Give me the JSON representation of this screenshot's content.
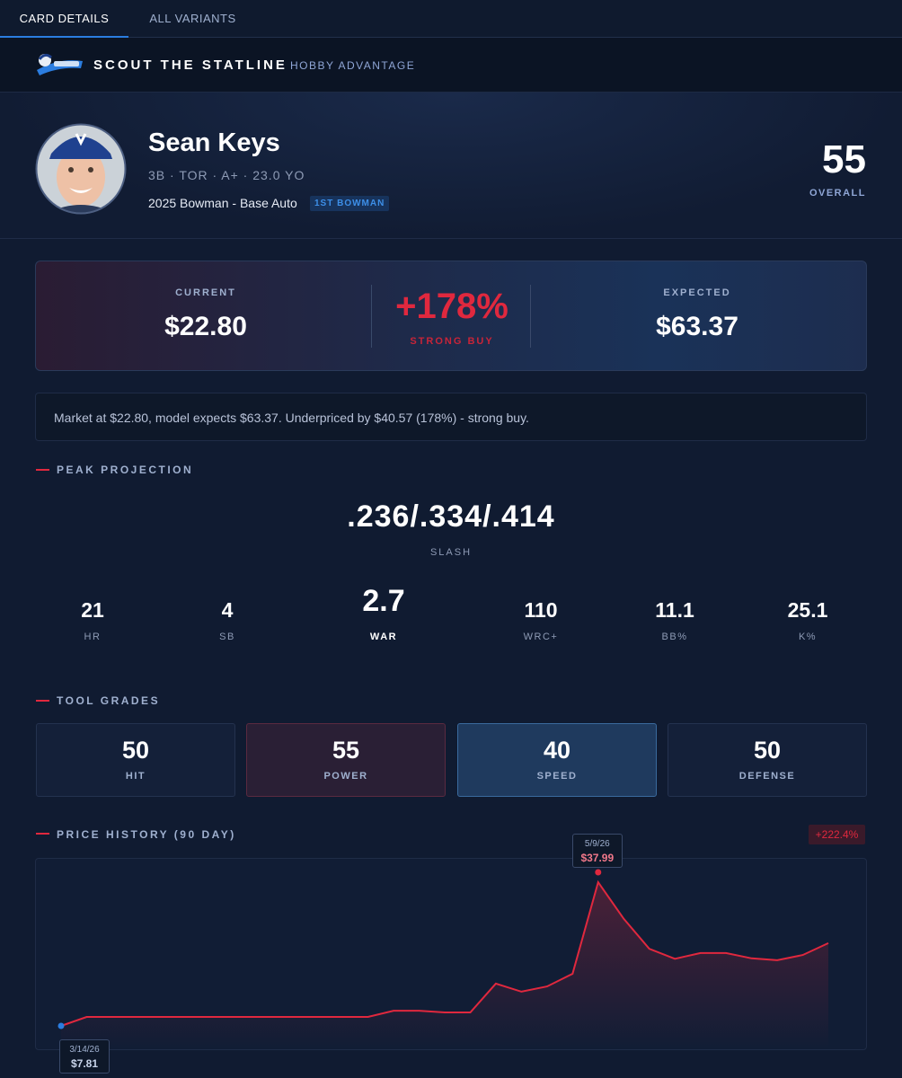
{
  "tabs": [
    "CARD DETAILS",
    "ALL VARIANTS"
  ],
  "brand": {
    "name": "SCOUT THE STATLINE",
    "tagline": "HOBBY ADVANTAGE"
  },
  "player": {
    "name": "Sean Keys",
    "meta": "3B · TOR · A+ · 23.0 YO",
    "card": "2025 Bowman - Base Auto",
    "badge": "1ST BOWMAN",
    "overall": 55,
    "overall_label": "OVERALL"
  },
  "valuation": {
    "current_label": "CURRENT",
    "current": "$22.80",
    "change": "+178%",
    "signal": "STRONG BUY",
    "expected_label": "EXPECTED",
    "expected": "$63.37"
  },
  "summary": "Market at $22.80, model expects $63.37. Underpriced by $40.57 (178%) - strong buy.",
  "projection": {
    "heading": "PEAK PROJECTION",
    "slash": ".236/.334/.414",
    "slash_label": "SLASH",
    "stats": [
      {
        "value": 21,
        "label": "HR"
      },
      {
        "value": 4,
        "label": "SB"
      },
      {
        "value": 2.7,
        "label": "WAR"
      },
      {
        "value": 110,
        "label": "WRC+"
      },
      {
        "value": 11.1,
        "label": "BB%"
      },
      {
        "value": 25.1,
        "label": "K%"
      }
    ]
  },
  "tools": {
    "heading": "TOOL GRADES",
    "grades": [
      {
        "value": 50,
        "label": "HIT"
      },
      {
        "value": 55,
        "label": "POWER"
      },
      {
        "value": 40,
        "label": "SPEED"
      },
      {
        "value": 50,
        "label": "DEFENSE"
      }
    ]
  },
  "price_history": {
    "heading": "PRICE HISTORY (90 DAY)",
    "change": "+222.4%",
    "values": [
      7.81,
      9.7,
      9.7,
      9.7,
      9.7,
      9.7,
      9.7,
      9.7,
      9.7,
      9.7,
      9.7,
      9.7,
      9.7,
      11.0,
      11.0,
      10.64,
      10.64,
      16.7,
      15.0,
      16.1,
      18.75,
      37.99,
      30.3,
      24.0,
      21.9,
      23.1,
      23.1,
      22.0,
      21.6,
      22.7,
      25.18
    ],
    "start": {
      "date": "3/14/26",
      "price": "$7.81"
    },
    "peak": {
      "date": "5/9/26",
      "price": "$37.99"
    }
  }
}
